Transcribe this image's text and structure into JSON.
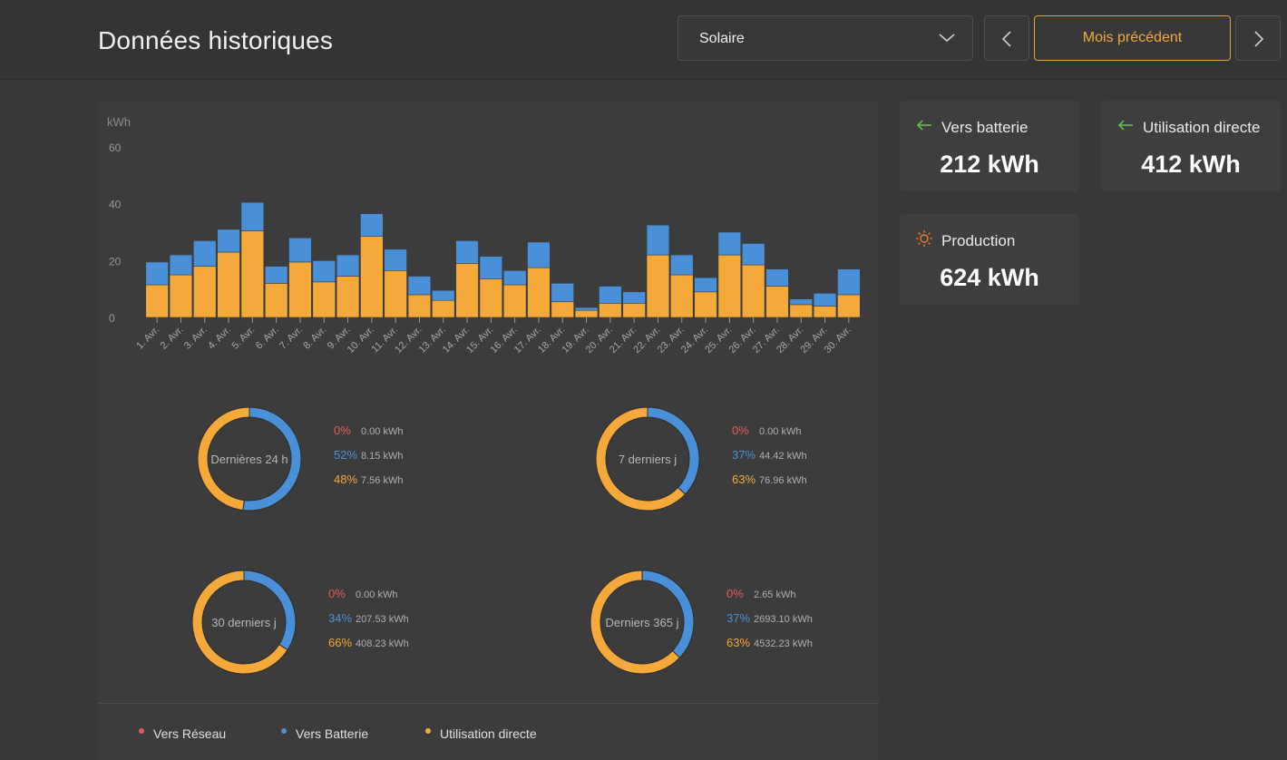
{
  "header": {
    "title": "Données historiques",
    "source_select": {
      "value": "Solaire"
    },
    "prev_label": "Mois précédent"
  },
  "cards": {
    "battery": {
      "label": "Vers batterie",
      "value": "212 kWh"
    },
    "direct": {
      "label": "Utilisation directe",
      "value": "412 kWh"
    },
    "production": {
      "label": "Production",
      "value": "624 kWh"
    }
  },
  "colors": {
    "grid": "#e85a5a",
    "battery": "#4a90d9",
    "direct": "#f5a93a",
    "green_arrow": "#5fbf4a",
    "sun": "#f07a2a"
  },
  "chart_data": {
    "type": "bar",
    "stacked": true,
    "ylabel": "kWh",
    "ylim": [
      0,
      60
    ],
    "yticks": [
      0,
      20,
      40,
      60
    ],
    "categories": [
      "1. Avr.",
      "2. Avr.",
      "3. Avr.",
      "4. Avr.",
      "5. Avr.",
      "6. Avr.",
      "7. Avr.",
      "8. Avr.",
      "9. Avr.",
      "10. Avr.",
      "11. Avr.",
      "12. Avr.",
      "13. Avr.",
      "14. Avr.",
      "15. Avr.",
      "16. Avr.",
      "17. Avr.",
      "18. Avr.",
      "19. Avr.",
      "20. Avr.",
      "21. Avr.",
      "22. Avr.",
      "23. Avr.",
      "24. Avr.",
      "25. Avr.",
      "26. Avr.",
      "27. Avr.",
      "28. Avr.",
      "29. Avr.",
      "30. Avr."
    ],
    "series": [
      {
        "name": "Utilisation directe",
        "color": "#f5a93a",
        "values": [
          11.5,
          15,
          18,
          23,
          30.5,
          12,
          19.5,
          12.5,
          14.5,
          28.5,
          16.5,
          8,
          6,
          19,
          13.5,
          11.5,
          17.5,
          5.5,
          2.5,
          5,
          5,
          22,
          15,
          9,
          22,
          18.5,
          11,
          4.5,
          4,
          8
        ]
      },
      {
        "name": "Vers Batterie",
        "color": "#4a90d9",
        "values": [
          8,
          7,
          9,
          8,
          10,
          6,
          8.5,
          7.5,
          7.5,
          8,
          7.5,
          6.5,
          3.5,
          8,
          8,
          5,
          9,
          6.5,
          1,
          6,
          4,
          10.5,
          7,
          5,
          8,
          7.5,
          6,
          2,
          4.5,
          9
        ]
      }
    ]
  },
  "donuts": [
    {
      "label": "Dernières 24 h",
      "rows": [
        {
          "pct": "0%",
          "value": "0.00 kWh"
        },
        {
          "pct": "52%",
          "value": "8.15 kWh"
        },
        {
          "pct": "48%",
          "value": "7.56 kWh"
        }
      ],
      "fractions": [
        0,
        0.52,
        0.48
      ]
    },
    {
      "label": "7 derniers j",
      "rows": [
        {
          "pct": "0%",
          "value": "0.00 kWh"
        },
        {
          "pct": "37%",
          "value": "44.42 kWh"
        },
        {
          "pct": "63%",
          "value": "76.96 kWh"
        }
      ],
      "fractions": [
        0,
        0.37,
        0.63
      ]
    },
    {
      "label": "30 derniers j",
      "rows": [
        {
          "pct": "0%",
          "value": "0.00 kWh"
        },
        {
          "pct": "34%",
          "value": "207.53 kWh"
        },
        {
          "pct": "66%",
          "value": "408.23 kWh"
        }
      ],
      "fractions": [
        0,
        0.34,
        0.66
      ]
    },
    {
      "label": "Derniers 365 j",
      "rows": [
        {
          "pct": "0%",
          "value": "2.65 kWh"
        },
        {
          "pct": "37%",
          "value": "2693.10 kWh"
        },
        {
          "pct": "63%",
          "value": "4532.23 kWh"
        }
      ],
      "fractions": [
        0.0004,
        0.37,
        0.6296
      ]
    }
  ],
  "legend": [
    {
      "label": "Vers Réseau",
      "color": "#e85a5a"
    },
    {
      "label": "Vers Batterie",
      "color": "#4a90d9"
    },
    {
      "label": "Utilisation directe",
      "color": "#f5a93a"
    }
  ]
}
